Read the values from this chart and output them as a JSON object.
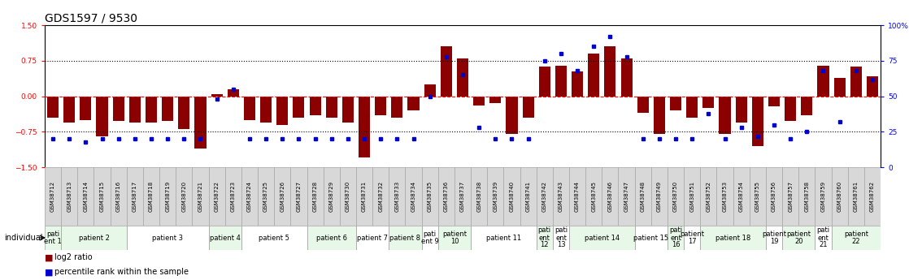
{
  "title": "GDS1597 / 9530",
  "samples": [
    "GSM38712",
    "GSM38713",
    "GSM38714",
    "GSM38715",
    "GSM38716",
    "GSM38717",
    "GSM38718",
    "GSM38719",
    "GSM38720",
    "GSM38721",
    "GSM38722",
    "GSM38723",
    "GSM38724",
    "GSM38725",
    "GSM38726",
    "GSM38727",
    "GSM38728",
    "GSM38729",
    "GSM38730",
    "GSM38731",
    "GSM38732",
    "GSM38733",
    "GSM38734",
    "GSM38735",
    "GSM38736",
    "GSM38737",
    "GSM38738",
    "GSM38739",
    "GSM38740",
    "GSM38741",
    "GSM38742",
    "GSM38743",
    "GSM38744",
    "GSM38745",
    "GSM38746",
    "GSM38747",
    "GSM38748",
    "GSM38749",
    "GSM38750",
    "GSM38751",
    "GSM38752",
    "GSM38753",
    "GSM38754",
    "GSM38755",
    "GSM38756",
    "GSM38757",
    "GSM38758",
    "GSM38759",
    "GSM38760",
    "GSM38761",
    "GSM38762"
  ],
  "log2_ratio": [
    -0.45,
    -0.55,
    -0.5,
    -0.85,
    -0.52,
    -0.55,
    -0.55,
    -0.52,
    -0.7,
    -1.1,
    0.05,
    0.15,
    -0.5,
    -0.55,
    -0.6,
    -0.45,
    -0.4,
    -0.45,
    -0.55,
    -1.3,
    -0.4,
    -0.45,
    -0.3,
    0.25,
    1.05,
    0.8,
    -0.2,
    -0.15,
    -0.8,
    -0.45,
    0.62,
    0.65,
    0.52,
    0.9,
    1.05,
    0.8,
    -0.35,
    -0.8,
    -0.3,
    -0.45,
    -0.25,
    -0.8,
    -0.55,
    -1.05,
    -0.22,
    -0.52,
    -0.4,
    0.65,
    0.38,
    0.62,
    0.42
  ],
  "percentile": [
    20,
    20,
    18,
    20,
    20,
    20,
    20,
    20,
    20,
    20,
    48,
    55,
    20,
    20,
    20,
    20,
    20,
    20,
    20,
    20,
    20,
    20,
    20,
    50,
    78,
    65,
    28,
    20,
    20,
    20,
    75,
    80,
    68,
    85,
    92,
    78,
    20,
    20,
    20,
    20,
    38,
    20,
    28,
    22,
    30,
    20,
    25,
    68,
    32,
    68,
    62
  ],
  "patients": [
    {
      "label": "pati\nent 1",
      "start": 0,
      "end": 1,
      "color": "#e8f8e8"
    },
    {
      "label": "patient 2",
      "start": 1,
      "end": 5,
      "color": "#e8f8e8"
    },
    {
      "label": "patient 3",
      "start": 5,
      "end": 10,
      "color": "#ffffff"
    },
    {
      "label": "patient 4",
      "start": 10,
      "end": 12,
      "color": "#e8f8e8"
    },
    {
      "label": "patient 5",
      "start": 12,
      "end": 16,
      "color": "#ffffff"
    },
    {
      "label": "patient 6",
      "start": 16,
      "end": 19,
      "color": "#e8f8e8"
    },
    {
      "label": "patient 7",
      "start": 19,
      "end": 21,
      "color": "#ffffff"
    },
    {
      "label": "patient 8",
      "start": 21,
      "end": 23,
      "color": "#e8f8e8"
    },
    {
      "label": "pati\nent 9",
      "start": 23,
      "end": 24,
      "color": "#ffffff"
    },
    {
      "label": "patient\n10",
      "start": 24,
      "end": 26,
      "color": "#e8f8e8"
    },
    {
      "label": "patient 11",
      "start": 26,
      "end": 30,
      "color": "#ffffff"
    },
    {
      "label": "pati\nent\n12",
      "start": 30,
      "end": 31,
      "color": "#e8f8e8"
    },
    {
      "label": "pati\nent\n13",
      "start": 31,
      "end": 32,
      "color": "#ffffff"
    },
    {
      "label": "patient 14",
      "start": 32,
      "end": 36,
      "color": "#e8f8e8"
    },
    {
      "label": "patient 15",
      "start": 36,
      "end": 38,
      "color": "#ffffff"
    },
    {
      "label": "pati\nent\n16",
      "start": 38,
      "end": 39,
      "color": "#e8f8e8"
    },
    {
      "label": "patient\n17",
      "start": 39,
      "end": 40,
      "color": "#ffffff"
    },
    {
      "label": "patient 18",
      "start": 40,
      "end": 44,
      "color": "#e8f8e8"
    },
    {
      "label": "patient\n19",
      "start": 44,
      "end": 45,
      "color": "#ffffff"
    },
    {
      "label": "patient\n20",
      "start": 45,
      "end": 47,
      "color": "#e8f8e8"
    },
    {
      "label": "pati\nent\n21",
      "start": 47,
      "end": 48,
      "color": "#ffffff"
    },
    {
      "label": "patient\n22",
      "start": 48,
      "end": 51,
      "color": "#e8f8e8"
    }
  ],
  "ylim": [
    -1.5,
    1.5
  ],
  "yticks_left": [
    -1.5,
    -0.75,
    0,
    0.75,
    1.5
  ],
  "yticks_right": [
    0,
    25,
    50,
    75,
    100
  ],
  "bar_color": "#8b0000",
  "dot_color": "#0000cd",
  "bar_width": 0.7,
  "title_fontsize": 10,
  "tick_fontsize": 6.5,
  "sample_fontsize": 5.0,
  "patient_fontsize": 6.0
}
